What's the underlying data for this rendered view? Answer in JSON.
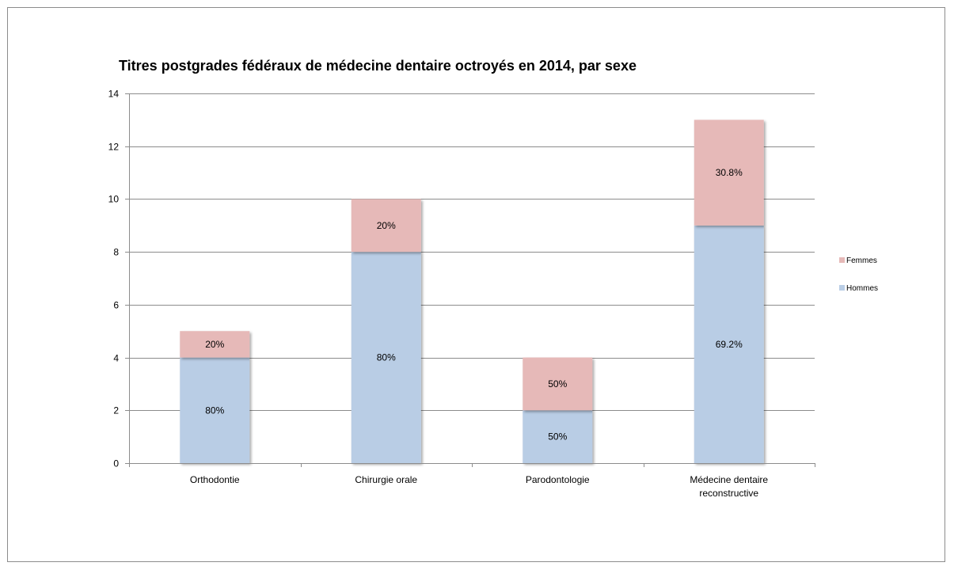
{
  "chart_data": {
    "type": "bar",
    "stacked": true,
    "title": "Titres postgrades fédéraux de médecine dentaire octroyés en 2014, par sexe",
    "xlabel": "",
    "ylabel": "",
    "categories": [
      [
        "Orthodontie"
      ],
      [
        "Chirurgie orale"
      ],
      [
        "Parodontologie"
      ],
      [
        "Médecine dentaire",
        "reconstructive"
      ]
    ],
    "series": [
      {
        "name": "Hommes",
        "color": "#b9cde5",
        "values": [
          4,
          8,
          2,
          9
        ],
        "labels": [
          "80%",
          "80%",
          "50%",
          "69.2%"
        ]
      },
      {
        "name": "Femmes",
        "color": "#e6b9b8",
        "values": [
          1,
          2,
          2,
          4
        ],
        "labels": [
          "20%",
          "20%",
          "50%",
          "30.8%"
        ]
      }
    ],
    "ylim": [
      0,
      14
    ],
    "yticks": [
      0,
      2,
      4,
      6,
      8,
      10,
      12,
      14
    ],
    "grid": true,
    "legend": {
      "placement": "right",
      "order": [
        "Femmes",
        "Hommes"
      ]
    },
    "colors": {
      "gridline": "#8c8c8c",
      "axis": "#8c8c8c"
    }
  }
}
